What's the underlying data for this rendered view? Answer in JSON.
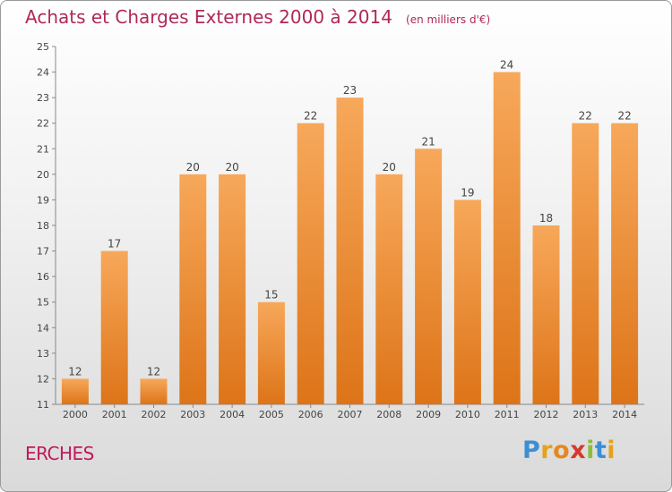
{
  "title": "Achats et Charges Externes 2000 à 2014",
  "unit": "(en milliers d'€)",
  "commune": "ERCHES",
  "logo": {
    "text": "Proxiti",
    "letters": [
      {
        "ch": "P",
        "color": "#3b8fd4"
      },
      {
        "ch": "r",
        "color": "#e5a21a"
      },
      {
        "ch": "o",
        "color": "#e8871e"
      },
      {
        "ch": "x",
        "color": "#d63a2c"
      },
      {
        "ch": "i",
        "color": "#8bbf3a"
      },
      {
        "ch": "t",
        "color": "#3b8fd4"
      },
      {
        "ch": "i",
        "color": "#e5a21a"
      }
    ]
  },
  "colors": {
    "bar_light": "#f7a85a",
    "bar_dark": "#dd7418",
    "title": "#b0285a",
    "text": "#444444"
  },
  "chart_data": {
    "type": "bar",
    "title": "Achats et Charges Externes 2000 à 2014",
    "subtitle": "(en milliers d'€)",
    "xlabel": "",
    "ylabel": "",
    "categories": [
      "2000",
      "2001",
      "2002",
      "2003",
      "2004",
      "2005",
      "2006",
      "2007",
      "2008",
      "2009",
      "2010",
      "2011",
      "2012",
      "2013",
      "2014"
    ],
    "values": [
      12,
      17,
      12,
      20,
      20,
      15,
      22,
      23,
      20,
      21,
      19,
      24,
      18,
      22,
      22
    ],
    "ylim": [
      11,
      25
    ],
    "yticks": [
      11,
      12,
      13,
      14,
      15,
      16,
      17,
      18,
      19,
      20,
      21,
      22,
      23,
      24,
      25
    ],
    "grid": false,
    "data_labels": true
  }
}
